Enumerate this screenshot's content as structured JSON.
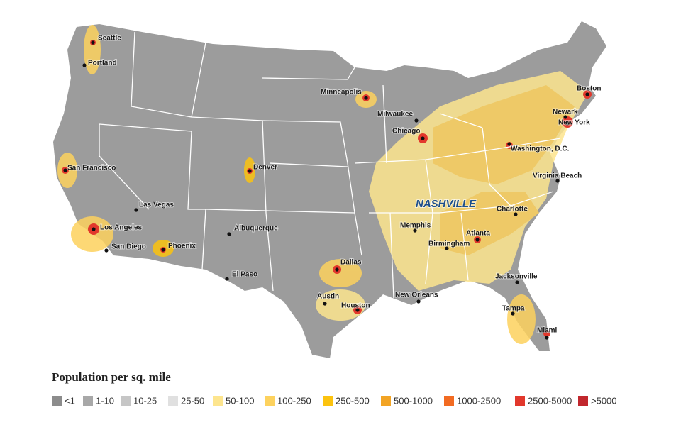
{
  "cities": [
    "Seattle",
    "Portland",
    "Minneapolis",
    "Boston",
    "Milwaukee",
    "Newark",
    "New York",
    "Chicago",
    "Washington, D.C.",
    "San Francisco",
    "Denver",
    "Virginia Beach",
    "Charlotte",
    "Las Vegas",
    "Los Angeles",
    "Memphis",
    "Albuquerque",
    "Atlanta",
    "San Diego",
    "Phoenix",
    "Birmingham",
    "Dallas",
    "El Paso",
    "Jacksonville",
    "New Orleans",
    "Austin",
    "Houston",
    "Tampa",
    "Miami"
  ],
  "highlight": "NASHVILLE",
  "legend": {
    "title": "Population per sq. mile",
    "items": [
      {
        "label": "<1",
        "color": "#8c8c8c"
      },
      {
        "label": "1-10",
        "color": "#a8a8a8"
      },
      {
        "label": "10-25",
        "color": "#c6c6c6"
      },
      {
        "label": "25-50",
        "color": "#e0e0e0"
      },
      {
        "label": "50-100",
        "color": "#fde58e"
      },
      {
        "label": "100-250",
        "color": "#fdd25e"
      },
      {
        "label": "250-500",
        "color": "#fcc30f"
      },
      {
        "label": "500-1000",
        "color": "#f2a424"
      },
      {
        "label": "1000-2500",
        "color": "#f26b22"
      },
      {
        "label": "2500-5000",
        "color": "#e2382c"
      },
      {
        "label": ">5000",
        "color": "#c1272d"
      }
    ]
  }
}
